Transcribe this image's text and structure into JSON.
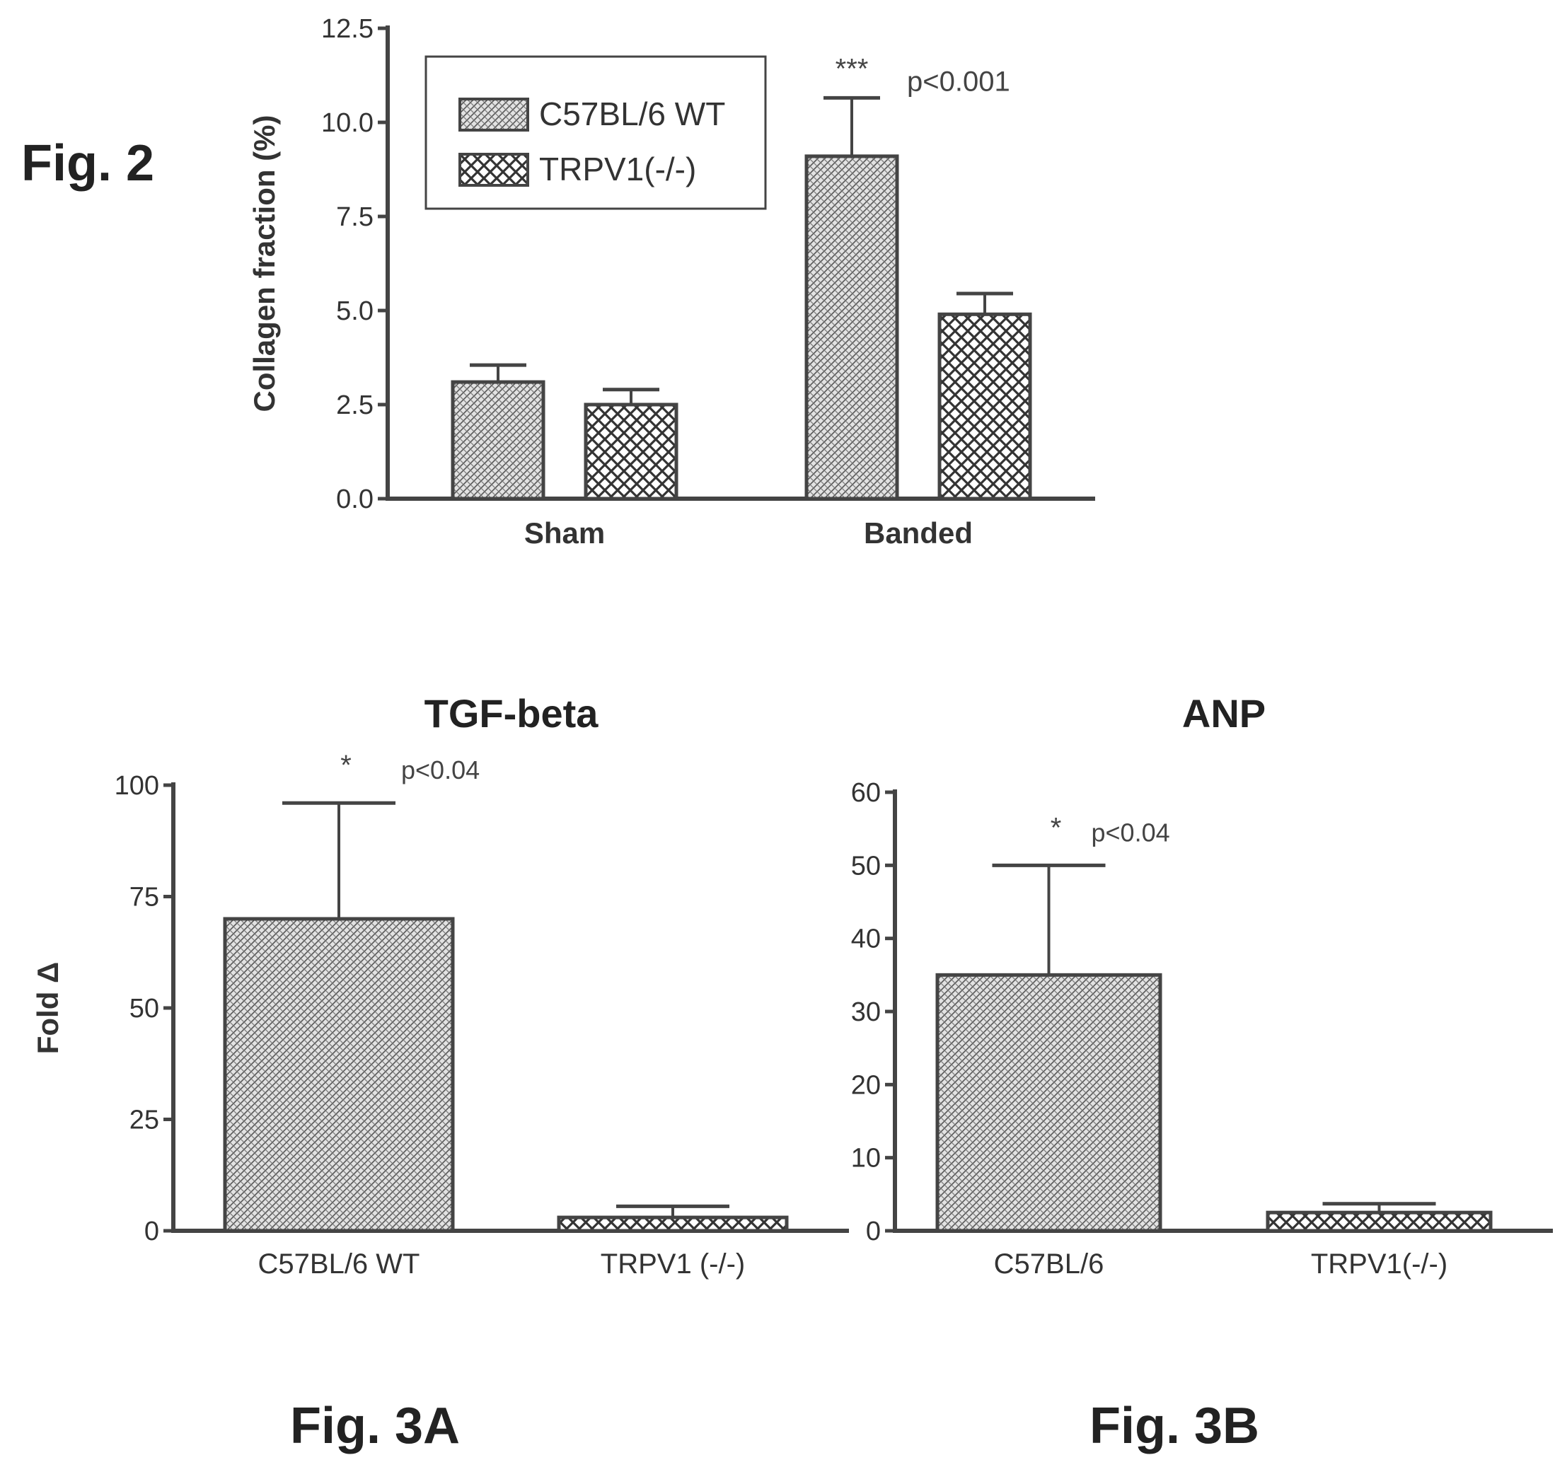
{
  "figure_labels": {
    "fig2": "Fig. 2",
    "fig3a": "Fig. 3A",
    "fig3b": "Fig. 3B"
  },
  "chart_data": [
    {
      "type": "bar",
      "panel": "Fig. 2",
      "title": "",
      "xlabel": "",
      "ylabel": "Collagen fraction (%)",
      "categories": [
        "Sham",
        "Banded"
      ],
      "series": [
        {
          "name": "C57BL/6 WT",
          "values": [
            3.1,
            9.1
          ],
          "errors": [
            0.45,
            1.55
          ]
        },
        {
          "name": "TRPV1(-/-)",
          "values": [
            2.5,
            4.9
          ],
          "errors": [
            0.4,
            0.55
          ]
        }
      ],
      "ylim": [
        0,
        12.5
      ],
      "yticks": [
        "0.0",
        "2.5",
        "5.0",
        "7.5",
        "10.0",
        "12.5"
      ],
      "legend": "top-left",
      "grid": false,
      "annotations": [
        {
          "text": "***",
          "category": "Banded",
          "series": "C57BL/6 WT"
        },
        {
          "text": "p<0.001",
          "category": "Banded",
          "series": "C57BL/6 WT"
        }
      ]
    },
    {
      "type": "bar",
      "panel": "Fig. 3A",
      "title": "TGF-beta",
      "xlabel": "",
      "ylabel": "Fold Δ",
      "categories": [
        "C57BL/6 WT",
        "TRPV1 (-/-)"
      ],
      "values": [
        70,
        3
      ],
      "errors": [
        26,
        2.5
      ],
      "ylim": [
        0,
        100
      ],
      "yticks": [
        "0",
        "25",
        "50",
        "75",
        "100"
      ],
      "grid": false,
      "annotations": [
        {
          "text": "*",
          "category": "C57BL/6 WT"
        },
        {
          "text": "p<0.04",
          "category": "C57BL/6 WT"
        }
      ]
    },
    {
      "type": "bar",
      "panel": "Fig. 3B",
      "title": "ANP",
      "xlabel": "",
      "ylabel": "",
      "categories": [
        "C57BL/6",
        "TRPV1(-/-)"
      ],
      "values": [
        35,
        2.5
      ],
      "errors": [
        15,
        1.2
      ],
      "ylim": [
        0,
        60
      ],
      "yticks": [
        "0",
        "10",
        "20",
        "30",
        "40",
        "50",
        "60"
      ],
      "grid": false,
      "annotations": [
        {
          "text": "*",
          "category": "C57BL/6"
        },
        {
          "text": "p<0.04",
          "category": "C57BL/6"
        }
      ]
    }
  ]
}
